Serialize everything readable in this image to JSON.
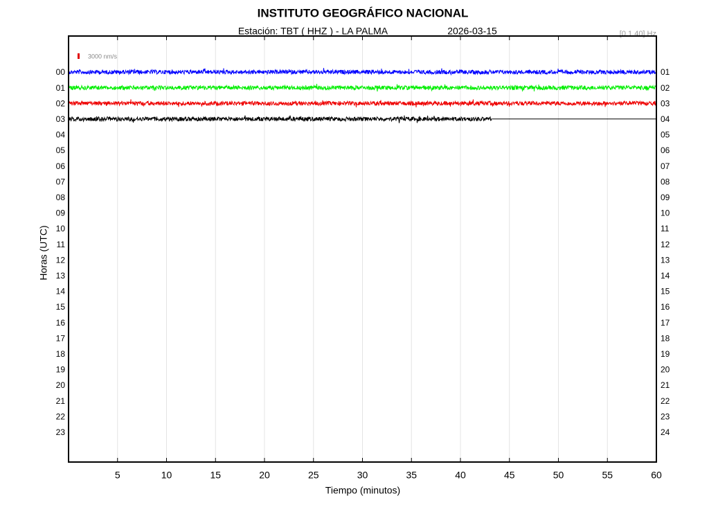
{
  "chart_data": {
    "type": "helicorder",
    "title": "INSTITUTO GEOGRÁFICO NACIONAL",
    "station": "Estación:  TBT ( HHZ ) - LA PALMA",
    "date": "2026-03-15",
    "filter": "[0.1 40] Hz",
    "scale_label": "3000 nm/s",
    "scale_color": "#e00000",
    "xlabel": "Tiempo (minutos)",
    "ylabel": "Horas (UTC)",
    "xlim": [
      0,
      60
    ],
    "xticks": [
      5,
      10,
      15,
      20,
      25,
      30,
      35,
      40,
      45,
      50,
      55,
      60
    ],
    "grid": true,
    "left_labels": [
      "00",
      "01",
      "02",
      "03",
      "04",
      "05",
      "06",
      "07",
      "08",
      "09",
      "10",
      "11",
      "12",
      "13",
      "14",
      "15",
      "16",
      "17",
      "18",
      "19",
      "20",
      "21",
      "22",
      "23"
    ],
    "right_labels": [
      "01",
      "02",
      "03",
      "04",
      "05",
      "06",
      "07",
      "08",
      "09",
      "10",
      "11",
      "12",
      "13",
      "14",
      "15",
      "16",
      "17",
      "18",
      "19",
      "20",
      "21",
      "22",
      "23",
      "24"
    ],
    "series": [
      {
        "color": "#0000ff",
        "x_end": 60
      },
      {
        "color": "#00ee00",
        "x_end": 60
      },
      {
        "color": "#ee0000",
        "x_end": 60
      },
      {
        "color": "#000000",
        "x_end": 43.2
      }
    ]
  }
}
